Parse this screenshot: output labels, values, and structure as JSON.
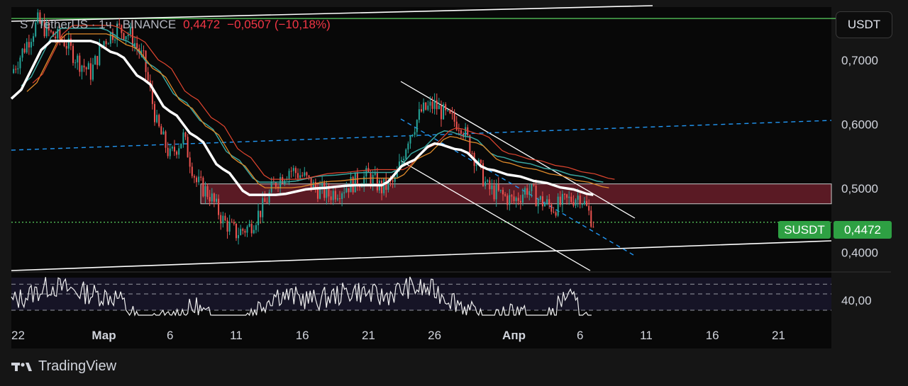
{
  "header": {
    "caption": "",
    "symbol": "S / TetherUS · 1ч · BINANCE",
    "price": "0,4472",
    "change": "−0,0507 (−10,18%)"
  },
  "currency_button": "USDT",
  "price_axis": {
    "ticks": [
      {
        "label": "0,7000",
        "value": 0.7
      },
      {
        "label": "0,6000",
        "value": 0.6
      },
      {
        "label": "0,5000",
        "value": 0.5
      },
      {
        "label": "0,4000",
        "value": 0.4
      }
    ]
  },
  "rsi_axis": {
    "ticks": [
      {
        "label": "40,00",
        "value": 40
      }
    ]
  },
  "time_axis": {
    "ticks": [
      {
        "label": "22",
        "bold": false
      },
      {
        "label": "Мар",
        "bold": true
      },
      {
        "label": "6",
        "bold": false
      },
      {
        "label": "11",
        "bold": false
      },
      {
        "label": "16",
        "bold": false
      },
      {
        "label": "21",
        "bold": false
      },
      {
        "label": "26",
        "bold": false
      },
      {
        "label": "Апр",
        "bold": true
      },
      {
        "label": "6",
        "bold": false
      },
      {
        "label": "11",
        "bold": false
      },
      {
        "label": "16",
        "bold": false
      },
      {
        "label": "21",
        "bold": false
      }
    ]
  },
  "last_price": {
    "symbol_tag": "SUSDT",
    "value_tag": "0,4472"
  },
  "footer": {
    "brand": "TradingView"
  },
  "colors": {
    "background": "#151515",
    "up": "#26a69a",
    "down": "#ef5350",
    "ma_white": "#ffffff",
    "ma_teal": "#3aa6a0",
    "ma_red": "#e0452f",
    "ma_orange": "#e08a2a",
    "zone": "#5a1a24",
    "trend_blue": "#2196f3",
    "resistance_green": "#4caf50",
    "price_tag": "#2ea043"
  },
  "chart_data": {
    "type": "line",
    "instrument": "S / TetherUS",
    "interval": "1ч",
    "exchange": "BINANCE",
    "last": 0.4472,
    "change": -0.0507,
    "change_pct": -10.18,
    "xlim": [
      "2025-02-22",
      "2025-04-25"
    ],
    "ylim": [
      0.385,
      0.78
    ],
    "scale": "linear",
    "grid": false,
    "series": [
      {
        "name": "",
        "style": "candles",
        "x": [
          "2025-02-22",
          "2025-02-24",
          "2025-02-25",
          "2025-02-26",
          "2025-02-27",
          "2025-02-28",
          "2025-03-01",
          "2025-03-02",
          "2025-03-03",
          "2025-03-04",
          "2025-03-05",
          "2025-03-06",
          "2025-03-07",
          "2025-03-08",
          "2025-03-09",
          "2025-03-10",
          "2025-03-11",
          "2025-03-12",
          "2025-03-13",
          "2025-03-14",
          "2025-03-15",
          "2025-03-16",
          "2025-03-17",
          "2025-03-18",
          "2025-03-19",
          "2025-03-20",
          "2025-03-21",
          "2025-03-22",
          "2025-03-23",
          "2025-03-24",
          "2025-03-25",
          "2025-03-26",
          "2025-03-27",
          "2025-03-28",
          "2025-03-29",
          "2025-03-30",
          "2025-03-31",
          "2025-04-01",
          "2025-04-02",
          "2025-04-03",
          "2025-04-04",
          "2025-04-05",
          "2025-04-06",
          "2025-04-07"
        ],
        "values": [
          0.68,
          0.76,
          0.74,
          0.73,
          0.7,
          0.68,
          0.73,
          0.75,
          0.74,
          0.7,
          0.6,
          0.55,
          0.58,
          0.51,
          0.49,
          0.45,
          0.43,
          0.44,
          0.47,
          0.51,
          0.53,
          0.52,
          0.5,
          0.49,
          0.5,
          0.51,
          0.52,
          0.5,
          0.51,
          0.58,
          0.62,
          0.63,
          0.61,
          0.6,
          0.55,
          0.5,
          0.49,
          0.48,
          0.5,
          0.48,
          0.47,
          0.48,
          0.49,
          0.4472
        ]
      },
      {
        "name": "",
        "style": "line",
        "color": "#ffffff",
        "x": [
          "2025-02-22",
          "2025-02-25",
          "2025-02-28",
          "2025-03-02",
          "2025-03-04",
          "2025-03-06",
          "2025-03-08",
          "2025-03-10",
          "2025-03-12",
          "2025-03-14",
          "2025-03-17",
          "2025-03-20",
          "2025-03-22",
          "2025-03-24",
          "2025-03-26",
          "2025-03-28",
          "2025-03-30",
          "2025-04-01",
          "2025-04-03",
          "2025-04-05",
          "2025-04-07"
        ],
        "values": [
          0.64,
          0.73,
          0.73,
          0.71,
          0.67,
          0.62,
          0.58,
          0.53,
          0.49,
          0.49,
          0.5,
          0.505,
          0.505,
          0.54,
          0.57,
          0.56,
          0.53,
          0.52,
          0.51,
          0.5,
          0.49
        ]
      }
    ],
    "zones": [
      {
        "from": 0.476,
        "to": 0.507,
        "color": "#5a1a24"
      }
    ],
    "horizontal_lines": [
      {
        "value": 0.4472,
        "style": "dotted",
        "color": "#4caf50"
      },
      {
        "value": 0.765,
        "style": "solid",
        "color": "#4caf50"
      }
    ],
    "rsi": {
      "levels": [
        30,
        40,
        50
      ],
      "x": [
        "2025-02-22",
        "2025-02-25",
        "2025-02-28",
        "2025-03-02",
        "2025-03-04",
        "2025-03-06",
        "2025-03-08",
        "2025-03-10",
        "2025-03-12",
        "2025-03-14",
        "2025-03-17",
        "2025-03-20",
        "2025-03-22",
        "2025-03-24",
        "2025-03-26",
        "2025-03-28",
        "2025-03-30",
        "2025-04-01",
        "2025-04-03",
        "2025-04-05",
        "2025-04-07"
      ],
      "values": [
        45,
        55,
        50,
        48,
        30,
        35,
        42,
        28,
        38,
        50,
        46,
        52,
        48,
        54,
        52,
        44,
        30,
        42,
        28,
        50,
        30
      ],
      "ylim": [
        25,
        60
      ]
    }
  }
}
